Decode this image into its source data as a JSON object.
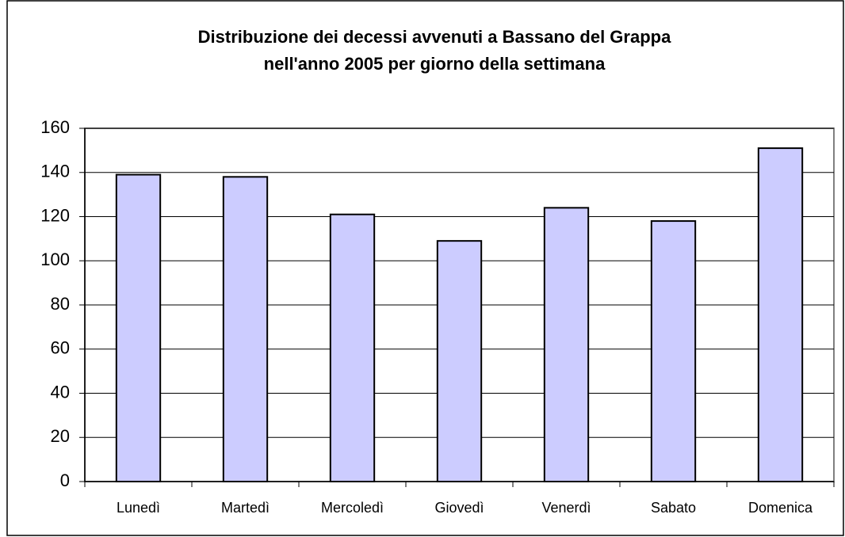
{
  "chart_data": {
    "type": "bar",
    "title": [
      "Distribuzione dei decessi avvenuti a Bassano del Grappa",
      "nell'anno 2005 per giorno della settimana"
    ],
    "categories": [
      "Lunedì",
      "Martedì",
      "Mercoledì",
      "Giovedì",
      "Venerdì",
      "Sabato",
      "Domenica"
    ],
    "values": [
      139,
      138,
      121,
      109,
      124,
      118,
      151
    ],
    "color": "#ccccff",
    "ylim": [
      0,
      160
    ],
    "yticks": [
      0,
      20,
      40,
      60,
      80,
      100,
      120,
      140,
      160
    ],
    "grid": true
  }
}
